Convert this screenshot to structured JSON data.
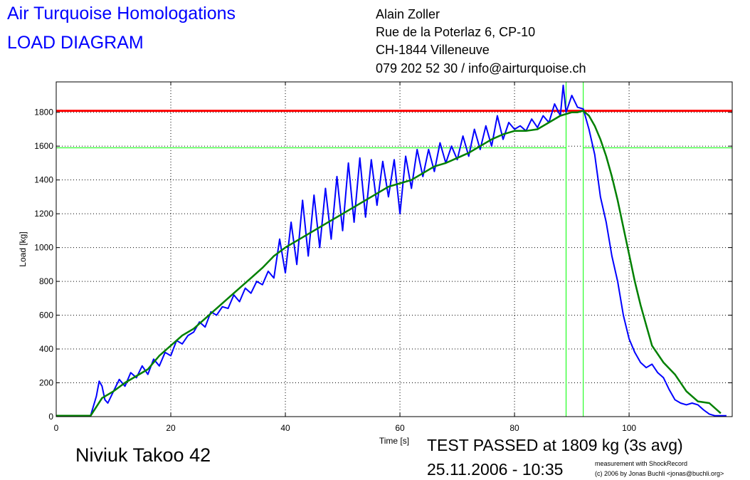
{
  "header": {
    "title_line1": "Air Turquoise Homologations",
    "title_line2": "LOAD DIAGRAM",
    "address": [
      "Alain Zoller",
      "Rue de la Poterlaz 6, CP-10",
      "CH-1844 Villeneuve",
      "079 202 52 30 / info@airturquoise.ch"
    ]
  },
  "footer": {
    "glider_name": "Niviuk Takoo 42",
    "result": "TEST PASSED at 1809 kg (3s avg)",
    "datetime": "25.11.2006 - 10:35",
    "credit_line1": "measurement with ShockRecord",
    "credit_line2": "(c) 2006 by Jonas Buchli <jonas@buchli.org>"
  },
  "colors": {
    "raw": "#0000ff",
    "avg": "#008000",
    "limit": "#ff0000",
    "marker": "#00ff00",
    "title": "#0000ff"
  },
  "chart_data": {
    "type": "line",
    "xlabel": "Time [s]",
    "ylabel": "Load [kg]",
    "xlim": [
      0,
      118
    ],
    "ylim": [
      0,
      1980
    ],
    "xticks": [
      0,
      20,
      40,
      60,
      80,
      100
    ],
    "yticks": [
      0,
      200,
      400,
      600,
      800,
      1000,
      1200,
      1400,
      1600,
      1800
    ],
    "grid": true,
    "limit_line": 1809,
    "marker_line": 1590,
    "marker_times": [
      89,
      92
    ],
    "series": [
      {
        "key": "raw",
        "x": [
          0,
          3,
          6,
          7,
          7.5,
          8,
          8.5,
          9,
          10,
          11,
          12,
          13,
          14,
          15,
          16,
          17,
          18,
          19,
          20,
          21,
          22,
          23,
          24,
          25,
          26,
          27,
          28,
          29,
          30,
          31,
          32,
          33,
          34,
          35,
          36,
          37,
          38,
          39,
          40,
          41,
          42,
          43,
          44,
          45,
          46,
          47,
          48,
          49,
          50,
          51,
          52,
          53,
          54,
          55,
          56,
          57,
          58,
          59,
          60,
          61,
          62,
          63,
          64,
          65,
          66,
          67,
          68,
          69,
          70,
          71,
          72,
          73,
          74,
          75,
          76,
          77,
          78,
          79,
          80,
          81,
          82,
          83,
          84,
          85,
          86,
          87,
          88,
          88.5,
          89,
          90,
          91,
          92,
          93,
          94,
          95,
          96,
          97,
          98,
          99,
          100,
          101,
          102,
          103,
          104,
          105,
          106,
          107,
          108,
          109,
          110,
          111,
          112,
          113,
          114,
          115,
          116,
          117
        ],
        "y": [
          5,
          5,
          5,
          120,
          210,
          180,
          100,
          80,
          150,
          220,
          180,
          260,
          230,
          300,
          250,
          340,
          300,
          380,
          360,
          450,
          430,
          480,
          500,
          560,
          530,
          620,
          600,
          650,
          640,
          720,
          680,
          760,
          730,
          800,
          780,
          860,
          820,
          1050,
          850,
          1150,
          900,
          1280,
          950,
          1310,
          1000,
          1350,
          1050,
          1420,
          1100,
          1500,
          1150,
          1530,
          1180,
          1520,
          1250,
          1510,
          1300,
          1520,
          1200,
          1540,
          1350,
          1580,
          1420,
          1580,
          1450,
          1620,
          1500,
          1600,
          1520,
          1660,
          1540,
          1700,
          1580,
          1720,
          1600,
          1780,
          1640,
          1740,
          1700,
          1720,
          1690,
          1760,
          1710,
          1780,
          1740,
          1850,
          1780,
          1960,
          1800,
          1900,
          1830,
          1820,
          1700,
          1550,
          1300,
          1150,
          950,
          800,
          600,
          460,
          380,
          320,
          290,
          310,
          260,
          230,
          160,
          100,
          80,
          70,
          80,
          70,
          40,
          15,
          5,
          5,
          5
        ]
      },
      {
        "key": "avg",
        "x": [
          0,
          3,
          6,
          8,
          10,
          12,
          14,
          16,
          18,
          20,
          22,
          24,
          26,
          28,
          30,
          32,
          34,
          36,
          38,
          40,
          42,
          44,
          46,
          48,
          50,
          52,
          54,
          56,
          58,
          60,
          62,
          64,
          66,
          68,
          70,
          72,
          74,
          76,
          78,
          80,
          82,
          84,
          86,
          88,
          90,
          91,
          92,
          93,
          94,
          95,
          96,
          97,
          98,
          99,
          100,
          101,
          102,
          103,
          104,
          106,
          108,
          110,
          112,
          114,
          116
        ],
        "y": [
          5,
          5,
          5,
          110,
          150,
          200,
          240,
          280,
          360,
          420,
          480,
          520,
          580,
          640,
          700,
          760,
          820,
          880,
          950,
          1000,
          1040,
          1080,
          1120,
          1160,
          1200,
          1240,
          1280,
          1320,
          1360,
          1380,
          1400,
          1440,
          1480,
          1500,
          1530,
          1560,
          1600,
          1640,
          1670,
          1690,
          1690,
          1700,
          1740,
          1780,
          1800,
          1800,
          1809,
          1780,
          1720,
          1640,
          1540,
          1420,
          1280,
          1120,
          960,
          800,
          660,
          540,
          420,
          320,
          250,
          150,
          90,
          80,
          20
        ]
      }
    ]
  }
}
